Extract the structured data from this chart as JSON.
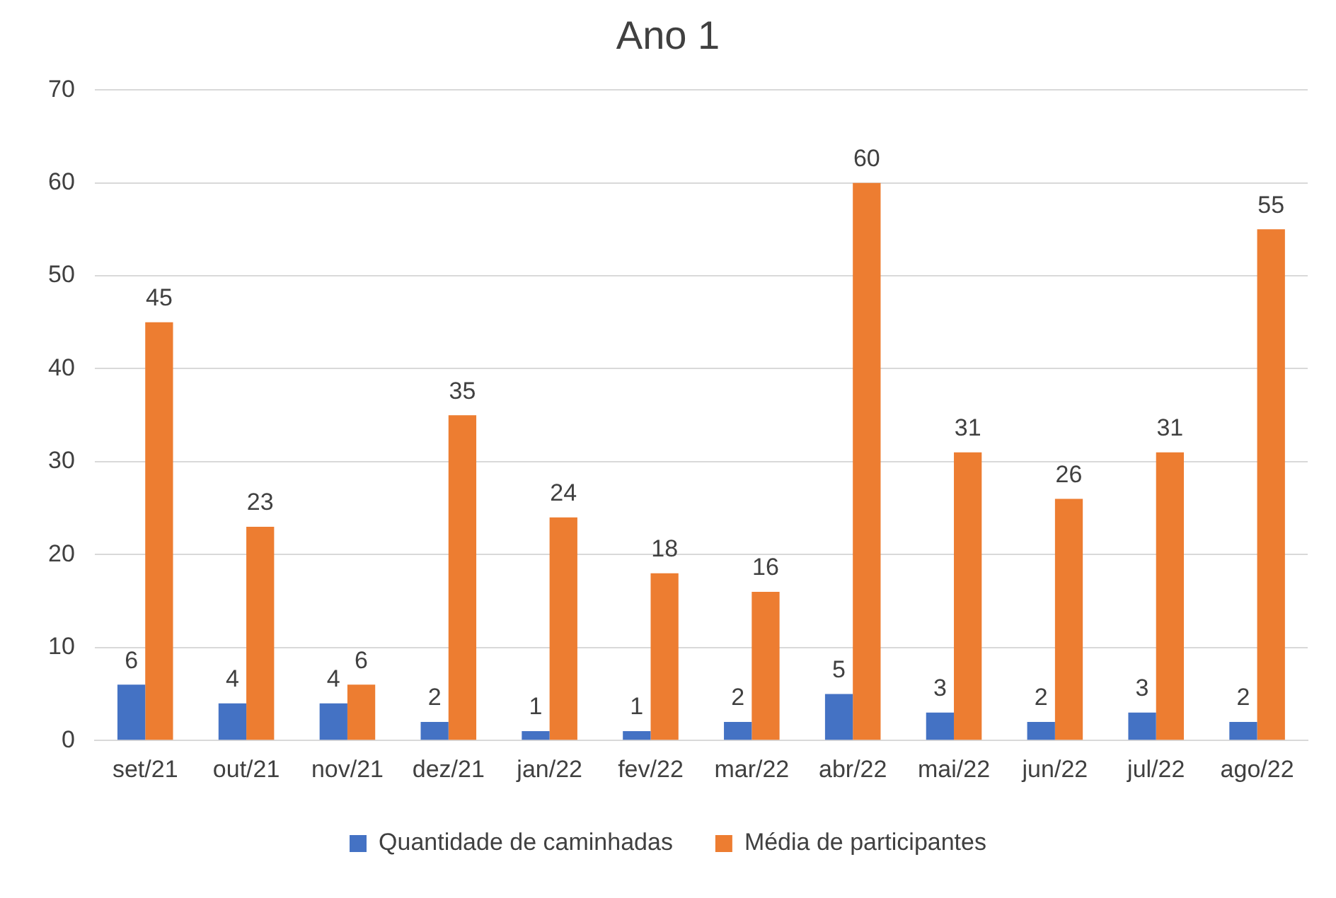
{
  "chart_data": {
    "type": "bar",
    "title": "Ano 1",
    "categories": [
      "set/21",
      "out/21",
      "nov/21",
      "dez/21",
      "jan/22",
      "fev/22",
      "mar/22",
      "abr/22",
      "mai/22",
      "jun/22",
      "jul/22",
      "ago/22"
    ],
    "series": [
      {
        "name": "Quantidade de caminhadas",
        "color": "#4472c4",
        "values": [
          6,
          4,
          4,
          2,
          1,
          1,
          2,
          5,
          3,
          2,
          3,
          2
        ]
      },
      {
        "name": "Média de participantes",
        "color": "#ed7d31",
        "values": [
          45,
          23,
          6,
          35,
          24,
          18,
          16,
          60,
          31,
          26,
          31,
          55
        ]
      }
    ],
    "ylim": [
      0,
      70
    ],
    "yticks": [
      0,
      10,
      20,
      30,
      40,
      50,
      60,
      70
    ],
    "grid": "y",
    "legend": "bottom",
    "data_labels": true
  }
}
